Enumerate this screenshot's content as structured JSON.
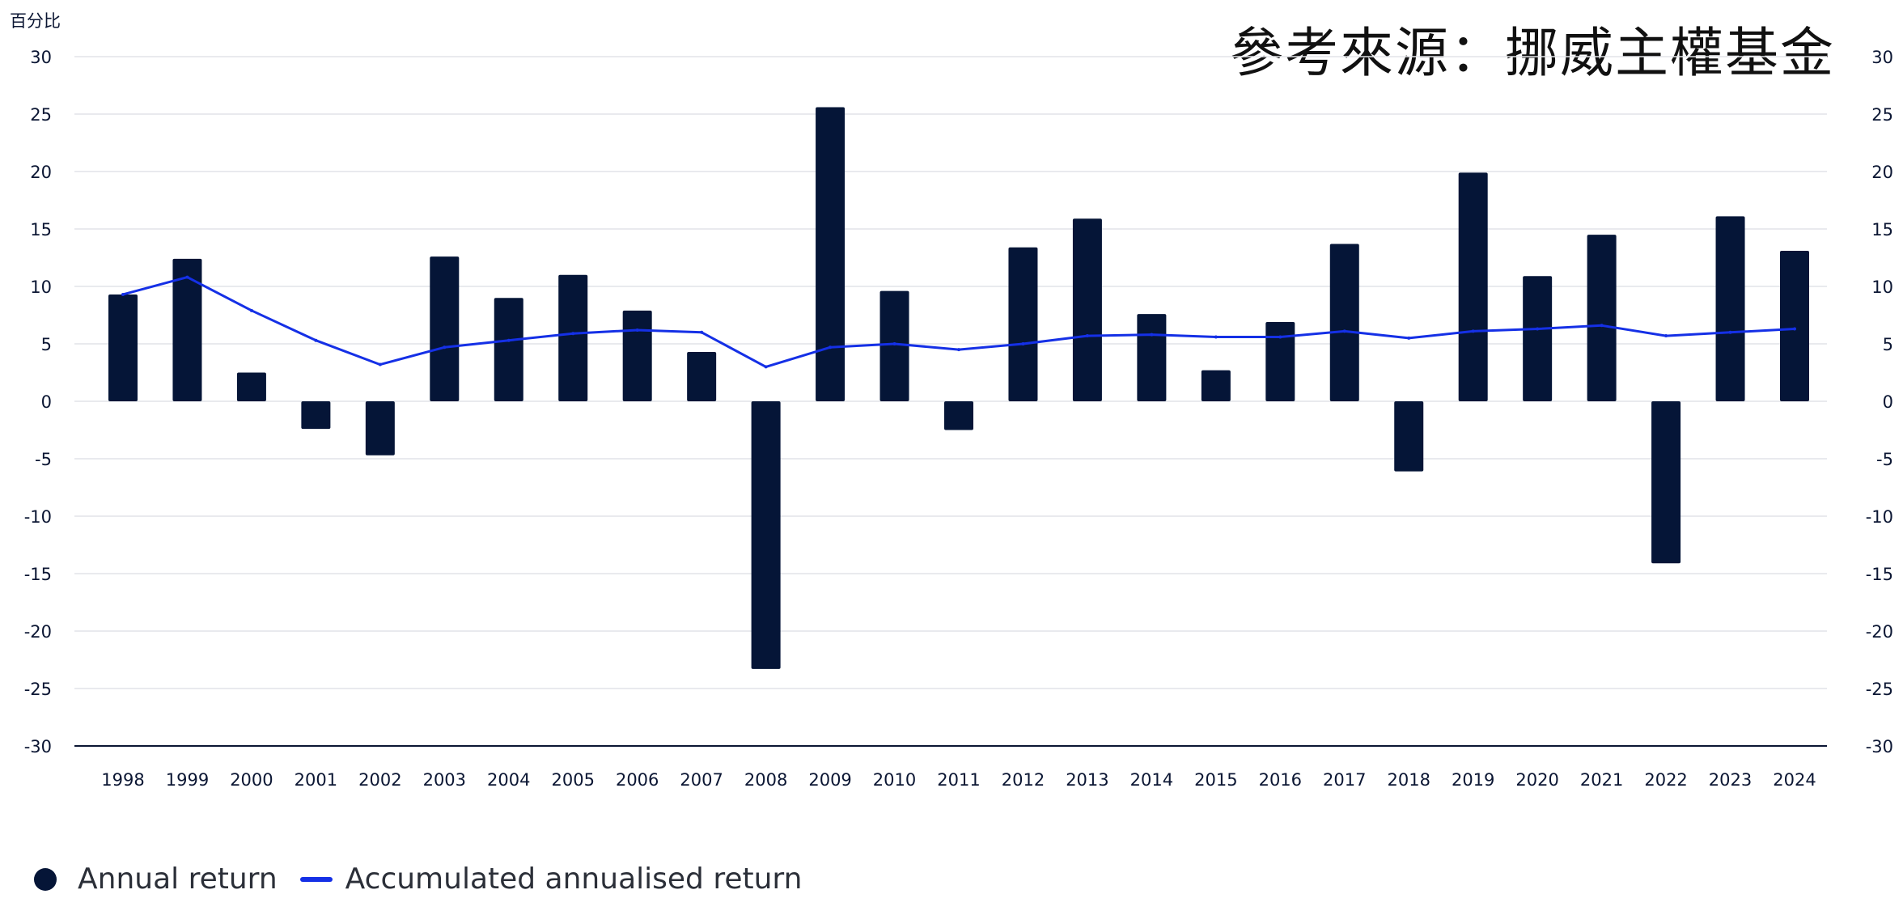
{
  "header": {
    "unit_label": "百分比",
    "title": "參考來源：挪威主權基金"
  },
  "legend": {
    "bar_label": "Annual return",
    "line_label": "Accumulated annualised return"
  },
  "colors": {
    "bar": "#051537",
    "line": "#1530e6",
    "grid": "#e2e4e8",
    "axis": "#0b1633"
  },
  "chart_data": {
    "type": "bar",
    "title": "參考來源：挪威主權基金",
    "ylabel": "百分比",
    "xlabel": "",
    "ylim": [
      -30,
      30
    ],
    "yticks": [
      30,
      25,
      20,
      15,
      10,
      5,
      0,
      -5,
      -10,
      -15,
      -20,
      -25,
      -30
    ],
    "grid": true,
    "legend_position": "bottom-left",
    "categories": [
      "1998",
      "1999",
      "2000",
      "2001",
      "2002",
      "2003",
      "2004",
      "2005",
      "2006",
      "2007",
      "2008",
      "2009",
      "2010",
      "2011",
      "2012",
      "2013",
      "2014",
      "2015",
      "2016",
      "2017",
      "2018",
      "2019",
      "2020",
      "2021",
      "2022",
      "2023",
      "2024"
    ],
    "series": [
      {
        "name": "Annual return",
        "type": "bar",
        "values": [
          9.3,
          12.4,
          2.5,
          -2.4,
          -4.7,
          12.6,
          9.0,
          11.0,
          7.9,
          4.3,
          -23.3,
          25.6,
          9.6,
          -2.5,
          13.4,
          15.9,
          7.6,
          2.7,
          6.9,
          13.7,
          -6.1,
          19.9,
          10.9,
          14.5,
          -14.1,
          16.1,
          13.1
        ]
      },
      {
        "name": "Accumulated annualised return",
        "type": "line",
        "values": [
          9.3,
          10.8,
          7.9,
          5.3,
          3.2,
          4.7,
          5.3,
          5.9,
          6.2,
          6.0,
          3.0,
          4.7,
          5.0,
          4.5,
          5.0,
          5.7,
          5.8,
          5.6,
          5.6,
          6.1,
          5.5,
          6.1,
          6.3,
          6.6,
          5.7,
          6.0,
          6.3
        ]
      }
    ]
  }
}
